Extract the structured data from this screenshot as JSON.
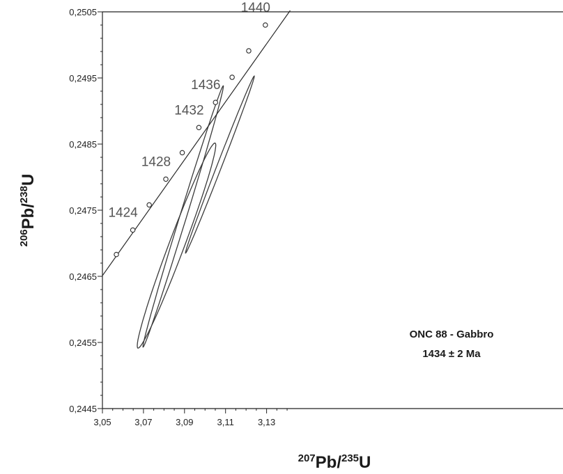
{
  "chart_data": {
    "type": "scatter",
    "title": "",
    "xlabel": {
      "prefix": "207",
      "main": "Pb/",
      "mid": "235",
      "tail": "U"
    },
    "ylabel": {
      "prefix": "206",
      "main": "Pb/",
      "mid": "238",
      "tail": "U"
    },
    "xlim": [
      3.05,
      3.14
    ],
    "ylim": [
      0.2445,
      0.2505
    ],
    "x_ticks": [
      {
        "v": 3.05,
        "label": "3,05"
      },
      {
        "v": 3.07,
        "label": "3,07"
      },
      {
        "v": 3.09,
        "label": "3,09"
      },
      {
        "v": 3.11,
        "label": "3,11"
      },
      {
        "v": 3.13,
        "label": "3,13"
      }
    ],
    "y_ticks": [
      {
        "v": 0.2445,
        "label": "0,2445"
      },
      {
        "v": 0.2455,
        "label": "0,2455"
      },
      {
        "v": 0.2465,
        "label": "0,2465"
      },
      {
        "v": 0.2475,
        "label": "0,2475"
      },
      {
        "v": 0.2485,
        "label": "0,2485"
      },
      {
        "v": 0.2495,
        "label": "0,2495"
      },
      {
        "v": 0.2505,
        "label": "0,2505"
      }
    ],
    "concordia": {
      "line": [
        [
          3.05,
          0.24651
        ],
        [
          3.1415,
          0.25052
        ]
      ],
      "points": [
        {
          "x": 3.0568,
          "y": 0.24683
        },
        {
          "x": 3.0648,
          "y": 0.2472,
          "label": "1424"
        },
        {
          "x": 3.0728,
          "y": 0.24758
        },
        {
          "x": 3.0809,
          "y": 0.24797,
          "label": "1428"
        },
        {
          "x": 3.0889,
          "y": 0.24837
        },
        {
          "x": 3.097,
          "y": 0.24875,
          "label": "1432"
        },
        {
          "x": 3.1051,
          "y": 0.24913,
          "label": "1436"
        },
        {
          "x": 3.1132,
          "y": 0.24951
        },
        {
          "x": 3.1213,
          "y": 0.24991
        },
        {
          "x": 3.1294,
          "y": 0.2503,
          "label": "1440"
        }
      ]
    },
    "ellipses": [
      {
        "x": [
          3.0698,
          3.0897,
          3.1089,
          3.0922,
          3.0698
        ],
        "y": [
          0.24543,
          0.24787,
          0.24938,
          0.24778,
          0.24543
        ]
      },
      {
        "x": [
          3.067,
          3.0855,
          3.1052,
          3.088,
          3.067
        ],
        "y": [
          0.24543,
          0.24735,
          0.2485,
          0.2469,
          0.24543
        ]
      },
      {
        "x": [
          3.0905,
          3.1078,
          3.124,
          3.1065,
          3.0905
        ],
        "y": [
          0.24686,
          0.2483,
          0.24952,
          0.248,
          0.24686
        ]
      }
    ],
    "annotation": {
      "sample": "ONC 88 - Gabbro",
      "age_value": "1434",
      "age_pm": "±",
      "age_err": "2 Ma"
    },
    "grid": false,
    "legend": "none"
  }
}
